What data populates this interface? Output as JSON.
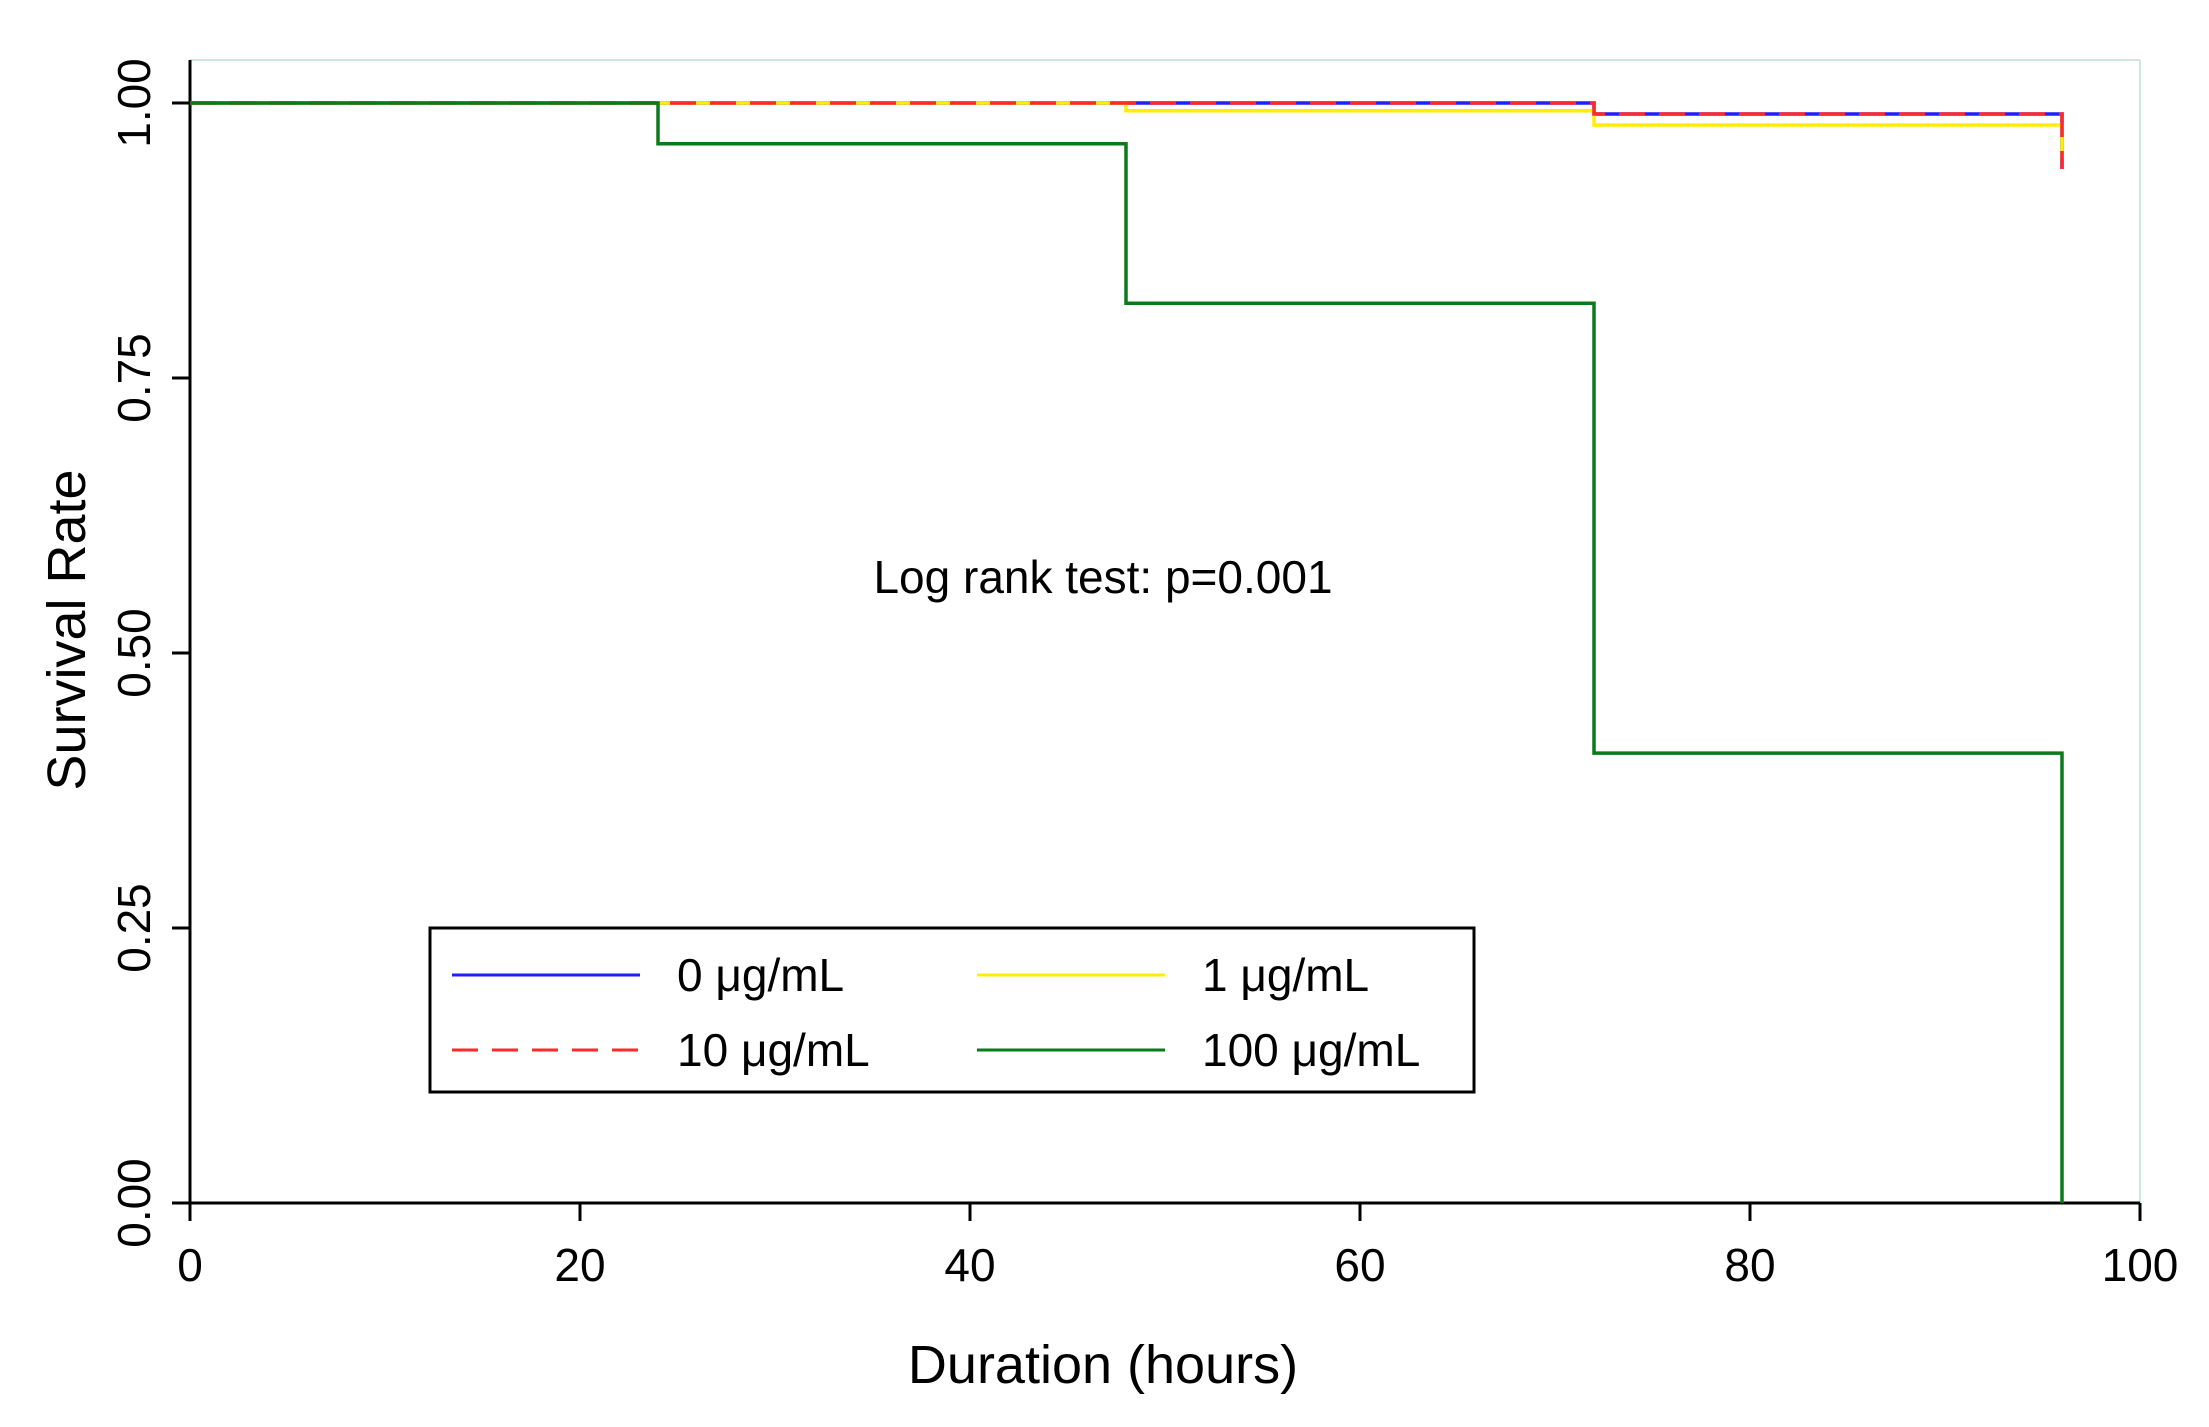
{
  "chart_data": {
    "type": "line",
    "subtype": "step",
    "title": "",
    "xlabel": "Duration (hours)",
    "ylabel": "Survival Rate",
    "xlim": [
      0,
      100
    ],
    "ylim": [
      0,
      1
    ],
    "xticks": [
      0,
      20,
      40,
      60,
      80,
      100
    ],
    "xtick_labels": [
      "0",
      "20",
      "40",
      "60",
      "80",
      "100"
    ],
    "yticks": [
      0,
      0.25,
      0.5,
      0.75,
      1
    ],
    "ytick_labels": [
      "0.00",
      "0.25",
      "0.50",
      "0.75",
      "1.00"
    ],
    "grid": false,
    "annotation": "Log rank test: p=0.001",
    "legend_position": "bottom-left",
    "series": [
      {
        "name": "0 μg/mL",
        "color": "#1f1fff",
        "dash": "solid",
        "points": [
          [
            0,
            1.0
          ],
          [
            72,
            1.0
          ],
          [
            72,
            0.99
          ],
          [
            96,
            0.99
          ],
          [
            96,
            0.94
          ]
        ]
      },
      {
        "name": "1 μg/mL",
        "color": "#ffee00",
        "dash": "solid",
        "points": [
          [
            0,
            1.0
          ],
          [
            48,
            1.0
          ],
          [
            48,
            0.993
          ],
          [
            72,
            0.993
          ],
          [
            72,
            0.98
          ],
          [
            96,
            0.98
          ],
          [
            96,
            0.95
          ]
        ]
      },
      {
        "name": "10 μg/mL",
        "color": "#ff2a2a",
        "dash": "dashed",
        "points": [
          [
            0,
            1.0
          ],
          [
            72,
            1.0
          ],
          [
            72,
            0.99
          ],
          [
            96,
            0.99
          ],
          [
            96,
            0.94
          ]
        ]
      },
      {
        "name": "100 μg/mL",
        "color": "#0a7a1a",
        "dash": "solid",
        "points": [
          [
            0,
            1.0
          ],
          [
            24,
            1.0
          ],
          [
            24,
            0.963
          ],
          [
            48,
            0.963
          ],
          [
            48,
            0.818
          ],
          [
            72,
            0.818
          ],
          [
            72,
            0.409
          ],
          [
            96,
            0.409
          ],
          [
            96,
            0.0
          ]
        ]
      }
    ]
  }
}
